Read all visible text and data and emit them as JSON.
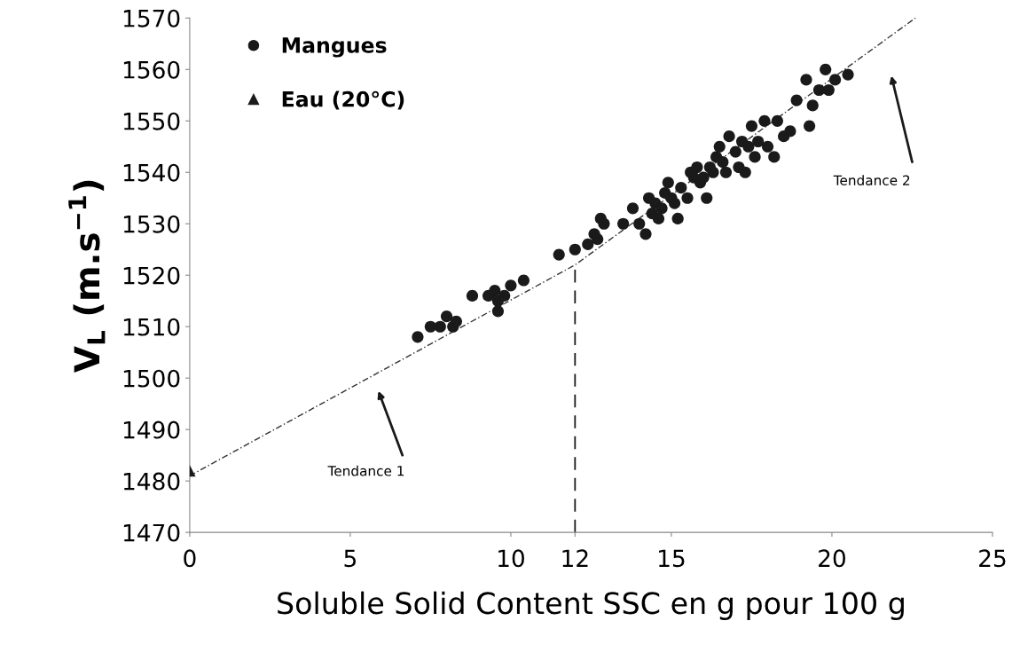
{
  "chart_data": {
    "type": "scatter",
    "xlabel": "Soluble Solid Content SSC en g pour 100 g",
    "ylabel": "V$_{L}$ (m.s$^{−1}$)",
    "xlim": [
      0,
      25
    ],
    "xticks": [
      0,
      5,
      10,
      {
        "value": 12,
        "label": "12"
      },
      15,
      20,
      25
    ],
    "ylim": [
      1470,
      1570
    ],
    "yticks": [
      1470,
      1480,
      1490,
      1500,
      1510,
      1520,
      1530,
      1540,
      1550,
      1560,
      1570
    ],
    "grid": false,
    "legend": "top left",
    "series": [
      {
        "name": "Mangues",
        "marker": "circle",
        "color": "#1a1a1a",
        "x": [
          7.1,
          7.5,
          7.8,
          8.0,
          8.2,
          8.3,
          8.8,
          9.3,
          9.5,
          9.6,
          9.6,
          9.8,
          10.0,
          10.4,
          11.5,
          12.0,
          12.4,
          12.6,
          12.8,
          12.9,
          12.7,
          13.5,
          13.8,
          14.0,
          14.2,
          14.3,
          14.4,
          14.5,
          14.6,
          14.7,
          14.8,
          14.9,
          15.0,
          15.1,
          15.2,
          15.3,
          15.5,
          15.6,
          15.7,
          15.8,
          15.9,
          16.0,
          16.1,
          16.2,
          16.3,
          16.4,
          16.5,
          16.6,
          16.7,
          16.8,
          17.0,
          17.1,
          17.2,
          17.3,
          17.4,
          17.5,
          17.6,
          17.7,
          17.9,
          18.0,
          18.2,
          18.3,
          18.5,
          18.7,
          18.9,
          19.2,
          19.3,
          19.4,
          19.6,
          19.8,
          19.9,
          20.1,
          20.5
        ],
        "values": [
          1508,
          1510,
          1510,
          1512,
          1510,
          1511,
          1516,
          1516,
          1517,
          1515,
          1513,
          1516,
          1518,
          1519,
          1524,
          1525,
          1526,
          1528,
          1531,
          1530,
          1527,
          1530,
          1533,
          1530,
          1528,
          1535,
          1532,
          1534,
          1531,
          1533,
          1536,
          1538,
          1535,
          1534,
          1531,
          1537,
          1535,
          1540,
          1539,
          1541,
          1538,
          1539,
          1535,
          1541,
          1540,
          1543,
          1545,
          1542,
          1540,
          1547,
          1544,
          1541,
          1546,
          1540,
          1545,
          1549,
          1543,
          1546,
          1550,
          1545,
          1543,
          1550,
          1547,
          1548,
          1554,
          1558,
          1549,
          1553,
          1556,
          1560,
          1556,
          1558,
          1559
        ]
      },
      {
        "name": "Eau (20°C)",
        "marker": "triangle",
        "color": "#1a1a1a",
        "x": [
          0
        ],
        "values": [
          1482
        ]
      },
      {
        "type": "line",
        "line_style": "dotted",
        "color": "#333333",
        "x": [
          0,
          12,
          22.6
        ],
        "values": [
          1481,
          1522,
          1570
        ]
      },
      {
        "type": "line",
        "line_style": "dashed",
        "color": "#1a1a1a",
        "x": [
          12,
          12
        ],
        "values": [
          1470,
          1522
        ]
      }
    ],
    "annotations": [
      "Tendance 1",
      "Tendance 2"
    ]
  }
}
